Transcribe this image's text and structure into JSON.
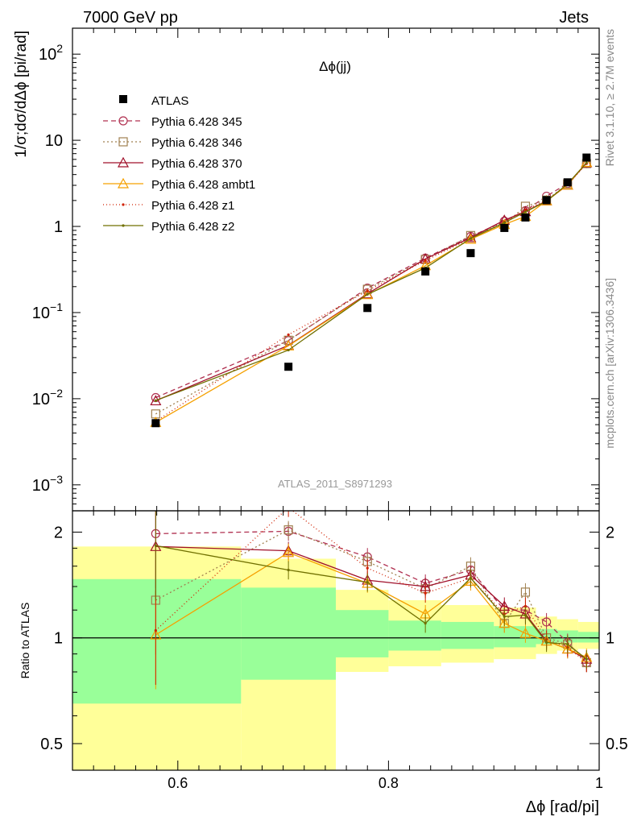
{
  "header": {
    "left": "7000 GeV pp",
    "right": "Jets"
  },
  "side_labels": {
    "rivet": "Rivet 3.1.10, ≥ 2.7M events",
    "mcplots": "mcplots.cern.ch [arXiv:1306.3436]"
  },
  "watermark": "ATLAS_2011_S8971293",
  "chart_data": {
    "type": "scatter",
    "title": "Δϕ(jj)",
    "xlabel": "Δϕ [rad/pi]",
    "ylabel": "1/σ;dσ/dΔϕ [pi/rad]",
    "ratio_ylabel": "Ratio to ATLAS",
    "xlim": [
      0.5,
      1.0
    ],
    "ylim": [
      0.0005,
      200
    ],
    "yscale": "log",
    "ratio_ylim": [
      0.42,
      2.3
    ],
    "x_ticks": [
      "0.6",
      "0.8",
      "1"
    ],
    "y_ticks": [
      {
        "v": 0.001,
        "m": "10",
        "e": "−3"
      },
      {
        "v": 0.01,
        "m": "10",
        "e": "−2"
      },
      {
        "v": 0.1,
        "m": "10",
        "e": "−1"
      },
      {
        "v": 1,
        "m": "1",
        "e": ""
      },
      {
        "v": 10,
        "m": "10",
        "e": ""
      },
      {
        "v": 100,
        "m": "10",
        "e": "2"
      }
    ],
    "ratio_ticks": [
      "0.5",
      "1",
      "2"
    ],
    "x": [
      0.579,
      0.705,
      0.78,
      0.835,
      0.878,
      0.91,
      0.93,
      0.95,
      0.97,
      0.988
    ],
    "data": {
      "name": "ATLAS",
      "y": [
        0.0052,
        0.0235,
        0.113,
        0.3,
        0.49,
        0.96,
        1.27,
        2.02,
        3.25,
        6.3
      ]
    },
    "band_edges": [
      0.5,
      0.66,
      0.75,
      0.8,
      0.85,
      0.9,
      0.94,
      0.96,
      0.98,
      1.0
    ],
    "band_inner": [
      [
        0.65,
        1.47
      ],
      [
        0.76,
        1.39
      ],
      [
        0.88,
        1.2
      ],
      [
        0.92,
        1.12
      ],
      [
        0.93,
        1.11
      ],
      [
        0.94,
        1.08
      ],
      [
        0.96,
        1.06
      ],
      [
        0.97,
        1.05
      ],
      [
        0.97,
        1.04
      ]
    ],
    "band_outer": [
      [
        0.42,
        1.82
      ],
      [
        0.38,
        1.68
      ],
      [
        0.8,
        1.37
      ],
      [
        0.83,
        1.28
      ],
      [
        0.85,
        1.24
      ],
      [
        0.87,
        1.22
      ],
      [
        0.9,
        1.15
      ],
      [
        0.92,
        1.13
      ],
      [
        0.93,
        1.11
      ]
    ],
    "series": [
      {
        "name": "Pythia 6.428 345",
        "color": "#b03050",
        "dash": "6,4",
        "marker": "circle",
        "ratio": [
          1.98,
          2.01,
          1.7,
          1.43,
          1.56,
          1.2,
          1.2,
          1.11,
          0.97,
          0.85
        ]
      },
      {
        "name": "Pythia 6.428 346",
        "color": "#a08050",
        "dash": "2,3",
        "marker": "square",
        "ratio": [
          1.28,
          2.03,
          1.65,
          1.38,
          1.6,
          1.1,
          1.35,
          1.0,
          0.96,
          0.85
        ]
      },
      {
        "name": "Pythia 6.428 370",
        "color": "#a0102a",
        "dash": "",
        "marker": "triangle",
        "ratio": [
          1.82,
          1.77,
          1.46,
          1.4,
          1.51,
          1.23,
          1.17,
          0.98,
          0.93,
          0.87
        ]
      },
      {
        "name": "Pythia 6.428 ambt1",
        "color": "#f5a000",
        "dash": "",
        "marker": "triangle",
        "ratio": [
          1.02,
          1.75,
          1.43,
          1.17,
          1.45,
          1.1,
          1.03,
          0.98,
          0.93,
          0.88
        ]
      },
      {
        "name": "Pythia 6.428 z1",
        "color": "#d02000",
        "dash": "1,3",
        "marker": "dot",
        "ratio": [
          1.05,
          2.35,
          1.58,
          1.34,
          1.48,
          1.17,
          1.23,
          0.99,
          0.94,
          0.85
        ]
      },
      {
        "name": "Pythia 6.428 z2",
        "color": "#707000",
        "dash": "",
        "marker": "dot",
        "ratio": [
          1.83,
          1.56,
          1.44,
          1.1,
          1.48,
          1.15,
          1.16,
          0.97,
          0.96,
          0.87
        ]
      }
    ]
  }
}
